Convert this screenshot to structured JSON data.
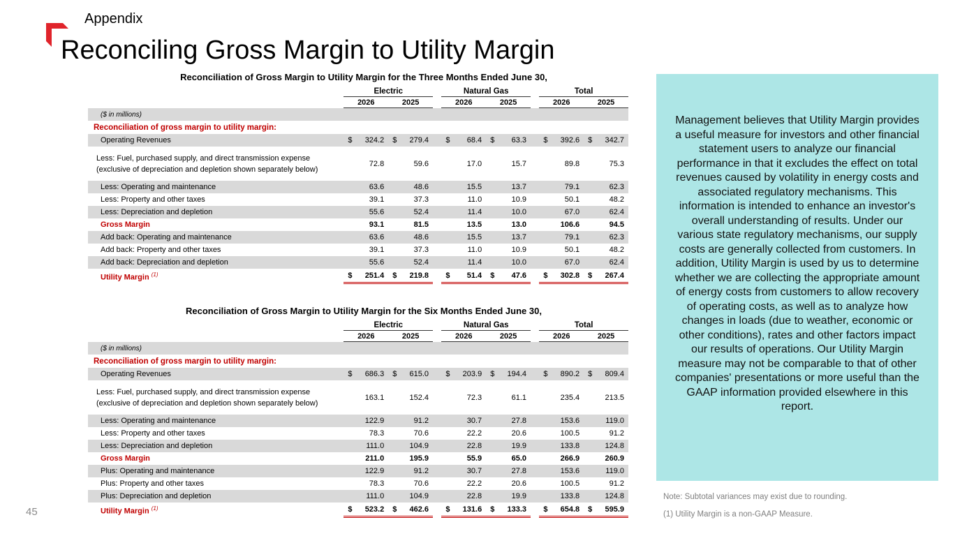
{
  "header": {
    "section": "Appendix",
    "title": "Reconciling Gross Margin to Utility Margin",
    "page_number": "45"
  },
  "colors": {
    "accent_red": "#c00000",
    "logo_red": "#e0242b",
    "sidebar_bg": "#ade6e6",
    "row_shade": "#d9d9d9"
  },
  "three_months": {
    "title": "Reconciliation of Gross Margin to Utility Margin for the Three Months Ended June 30,",
    "groups": [
      "Electric",
      "Natural Gas",
      "Total"
    ],
    "years": [
      "2026",
      "2025",
      "2026",
      "2025",
      "2026",
      "2025"
    ],
    "units_label": "($ in millions)",
    "section_heading": "Reconciliation of gross margin to utility margin:",
    "rows": [
      {
        "label": "Operating Revenues",
        "values": [
          "324.2",
          "279.4",
          "68.4",
          "63.3",
          "392.6",
          "342.7"
        ]
      },
      {
        "label": "Less:  Fuel, purchased supply, and direct transmission expense (exclusive of depreciation and depletion shown separately below)",
        "values": [
          "72.8",
          "59.6",
          "17.0",
          "15.7",
          "89.8",
          "75.3"
        ]
      },
      {
        "label": "Less:  Operating and maintenance",
        "values": [
          "63.6",
          "48.6",
          "15.5",
          "13.7",
          "79.1",
          "62.3"
        ]
      },
      {
        "label": "Less:  Property and other taxes",
        "values": [
          "39.1",
          "37.3",
          "11.0",
          "10.9",
          "50.1",
          "48.2"
        ]
      },
      {
        "label": "Less:  Depreciation and depletion",
        "values": [
          "55.6",
          "52.4",
          "11.4",
          "10.0",
          "67.0",
          "62.4"
        ]
      },
      {
        "label": "Gross Margin",
        "values": [
          "93.1",
          "81.5",
          "13.5",
          "13.0",
          "106.6",
          "94.5"
        ]
      },
      {
        "label": "Add back:  Operating and maintenance",
        "values": [
          "63.6",
          "48.6",
          "15.5",
          "13.7",
          "79.1",
          "62.3"
        ]
      },
      {
        "label": "Add back:  Property and other taxes",
        "values": [
          "39.1",
          "37.3",
          "11.0",
          "10.9",
          "50.1",
          "48.2"
        ]
      },
      {
        "label": "Add back:  Depreciation and depletion",
        "values": [
          "55.6",
          "52.4",
          "11.4",
          "10.0",
          "67.0",
          "62.4"
        ]
      },
      {
        "label": "Utility Margin",
        "footnote": "(1)",
        "values": [
          "251.4",
          "219.8",
          "51.4",
          "47.6",
          "302.8",
          "267.4"
        ]
      }
    ]
  },
  "six_months": {
    "title": "Reconciliation of Gross Margin to Utility Margin for the Six Months Ended June 30,",
    "groups": [
      "Electric",
      "Natural Gas",
      "Total"
    ],
    "years": [
      "2026",
      "2025",
      "2026",
      "2025",
      "2026",
      "2025"
    ],
    "units_label": "($ in millions)",
    "section_heading": "Reconciliation of gross margin to utility margin:",
    "rows": [
      {
        "label": "Operating Revenues",
        "values": [
          "686.3",
          "615.0",
          "203.9",
          "194.4",
          "890.2",
          "809.4"
        ]
      },
      {
        "label": "Less:  Fuel, purchased supply, and direct transmission expense (exclusive of depreciation and depletion shown separately below)",
        "values": [
          "163.1",
          "152.4",
          "72.3",
          "61.1",
          "235.4",
          "213.5"
        ]
      },
      {
        "label": "Less:  Operating and maintenance",
        "values": [
          "122.9",
          "91.2",
          "30.7",
          "27.8",
          "153.6",
          "119.0"
        ]
      },
      {
        "label": "Less:  Property and other taxes",
        "values": [
          "78.3",
          "70.6",
          "22.2",
          "20.6",
          "100.5",
          "91.2"
        ]
      },
      {
        "label": "Less:  Depreciation and depletion",
        "values": [
          "111.0",
          "104.9",
          "22.8",
          "19.9",
          "133.8",
          "124.8"
        ]
      },
      {
        "label": "Gross Margin",
        "values": [
          "211.0",
          "195.9",
          "55.9",
          "65.0",
          "266.9",
          "260.9"
        ]
      },
      {
        "label": "Plus:  Operating and maintenance",
        "values": [
          "122.9",
          "91.2",
          "30.7",
          "27.8",
          "153.6",
          "119.0"
        ]
      },
      {
        "label": "Plus:  Property and other taxes",
        "values": [
          "78.3",
          "70.6",
          "22.2",
          "20.6",
          "100.5",
          "91.2"
        ]
      },
      {
        "label": "Plus:  Depreciation and depletion",
        "values": [
          "111.0",
          "104.9",
          "22.8",
          "19.9",
          "133.8",
          "124.8"
        ]
      },
      {
        "label": "Utility Margin",
        "footnote": "(1)",
        "values": [
          "523.2",
          "462.6",
          "131.6",
          "133.3",
          "654.8",
          "595.9"
        ]
      }
    ]
  },
  "currency_symbol": "$",
  "sidebar": {
    "text": "Management believes that Utility Margin provides a useful measure for investors and other financial statement users to analyze our financial performance in that it excludes the effect on total revenues caused by volatility in energy costs and associated regulatory mechanisms. This information is intended to enhance an investor's overall understanding of results. Under our various state regulatory mechanisms, our supply costs are generally collected from customers. In addition, Utility Margin is used by us to determine whether we are collecting the appropriate amount of energy costs from customers to allow recovery of operating costs, as well as to analyze how changes in loads (due to weather, economic or other conditions), rates and other factors impact our results of operations. Our Utility Margin measure may not be comparable to that of other companies' presentations or more useful than the GAAP information provided elsewhere in this report."
  },
  "notes": {
    "rounding": "Note: Subtotal variances may exist due to rounding.",
    "footnote_1": "(1) Utility Margin is a non-GAAP Measure."
  }
}
